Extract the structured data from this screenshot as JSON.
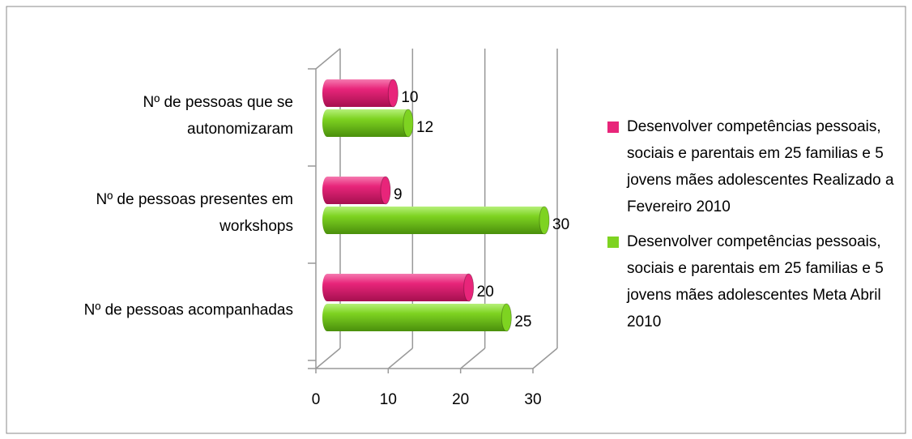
{
  "chart_data": {
    "type": "bar",
    "orientation": "horizontal",
    "categories": [
      "Nº de pessoas que se autonomizaram",
      "Nº de pessoas presentes em workshops",
      "Nº de pessoas acompanhadas"
    ],
    "series": [
      {
        "name": "Desenvolver competências pessoais, sociais e parentais em 25 familias e 5 jovens mães adolescentes Realizado a Fevereiro 2010",
        "color": "#e8257a",
        "values": [
          10,
          9,
          20
        ]
      },
      {
        "name": "Desenvolver competências pessoais, sociais e parentais em 25 familias e 5 jovens mães adolescentes Meta Abril 2010",
        "color": "#7ed321",
        "values": [
          12,
          30,
          25
        ]
      }
    ],
    "xlim": [
      0,
      30
    ],
    "xticks": [
      0,
      10,
      20,
      30
    ],
    "grid": true,
    "legend": "right"
  }
}
